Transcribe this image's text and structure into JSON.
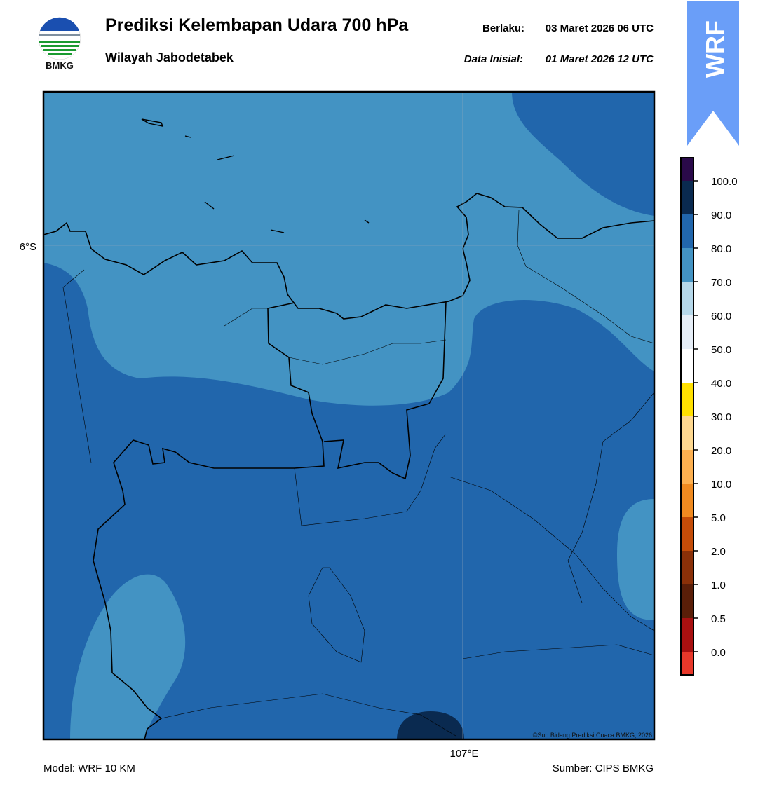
{
  "header": {
    "logo_text": "BMKG",
    "title": "Prediksi Kelembapan Udara 700 hPa",
    "subtitle": "Wilayah Jabodetabek",
    "valid_label": "Berlaku:",
    "valid_time": "03 Maret 2026 06 UTC",
    "init_label": "Data Inisial:",
    "init_time": "01 Maret 2026 12 UTC",
    "badge": "WRF"
  },
  "map": {
    "lat_label": "6°S",
    "lon_label": "107°E",
    "credit": "©Sub Bidang Prediksi Cuaca BMKG, 2026"
  },
  "colorbar": {
    "labels": [
      "0.0",
      "0.5",
      "1.0",
      "2.0",
      "5.0",
      "10.0",
      "20.0",
      "30.0",
      "40.0",
      "50.0",
      "60.0",
      "70.0",
      "80.0",
      "90.0",
      "100.0"
    ],
    "colors": [
      "#e8382a",
      "#a81010",
      "#5a1e08",
      "#8a3008",
      "#c44c08",
      "#f08a20",
      "#fdb050",
      "#fed890",
      "#ffe000",
      "#ffffff",
      "#e6eef7",
      "#b6d8ea",
      "#4393c3",
      "#2166ac",
      "#0a2a50",
      "#2a0a4a"
    ]
  },
  "footer": {
    "model": "Model: WRF 10 KM",
    "source": "Sumber: CIPS BMKG"
  }
}
